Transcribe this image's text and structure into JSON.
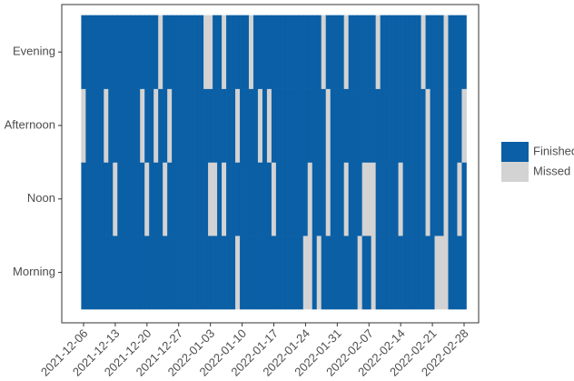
{
  "chart_data": {
    "type": "tile",
    "categories": [
      "2021-12-06",
      null,
      null,
      null,
      null,
      null,
      null,
      "2021-12-13",
      null,
      null,
      null,
      null,
      null,
      null,
      "2021-12-20",
      null,
      null,
      null,
      null,
      null,
      null,
      "2021-12-27",
      null,
      null,
      null,
      null,
      null,
      null,
      "2022-01-03",
      null,
      null,
      null,
      null,
      null,
      null,
      "2022-01-10",
      null,
      null,
      null,
      null,
      null,
      null,
      "2022-01-17",
      null,
      null,
      null,
      null,
      null,
      null,
      "2022-01-24",
      null,
      null,
      null,
      null,
      null,
      null,
      "2022-01-31",
      null,
      null,
      null,
      null,
      null,
      null,
      "2022-02-07",
      null,
      null,
      null,
      null,
      null,
      null,
      "2022-02-14",
      null,
      null,
      null,
      null,
      null,
      null,
      "2022-02-21",
      null,
      null,
      null,
      null,
      null,
      null,
      "2022-02-28"
    ],
    "series": [
      {
        "name": "Morning",
        "values": [
          1,
          1,
          1,
          1,
          1,
          1,
          1,
          1,
          1,
          1,
          1,
          1,
          1,
          1,
          1,
          1,
          1,
          1,
          1,
          1,
          1,
          1,
          1,
          1,
          1,
          1,
          1,
          1,
          1,
          1,
          1,
          1,
          1,
          1,
          0,
          1,
          1,
          1,
          1,
          1,
          1,
          1,
          1,
          1,
          1,
          1,
          1,
          1,
          1,
          0,
          0,
          1,
          0,
          1,
          1,
          1,
          1,
          1,
          1,
          1,
          1,
          0,
          1,
          1,
          0,
          1,
          1,
          1,
          1,
          1,
          1,
          1,
          1,
          1,
          1,
          1,
          1,
          1,
          0,
          0,
          0,
          1,
          1,
          1,
          1
        ]
      },
      {
        "name": "Noon",
        "values": [
          1,
          1,
          1,
          1,
          1,
          1,
          1,
          0,
          1,
          1,
          1,
          1,
          1,
          1,
          0,
          1,
          1,
          1,
          0,
          1,
          1,
          1,
          1,
          1,
          1,
          1,
          1,
          1,
          0,
          0,
          1,
          0,
          1,
          1,
          1,
          1,
          1,
          1,
          1,
          1,
          1,
          1,
          0,
          1,
          1,
          1,
          1,
          1,
          1,
          1,
          0,
          1,
          1,
          1,
          0,
          1,
          1,
          1,
          0,
          1,
          1,
          1,
          0,
          0,
          0,
          1,
          1,
          1,
          1,
          1,
          0,
          1,
          1,
          1,
          1,
          1,
          0,
          1,
          1,
          1,
          0,
          1,
          1,
          0,
          1
        ]
      },
      {
        "name": "Afternoon",
        "values": [
          0,
          1,
          1,
          1,
          1,
          0,
          1,
          1,
          1,
          1,
          1,
          1,
          1,
          0,
          1,
          1,
          0,
          1,
          1,
          0,
          1,
          1,
          1,
          1,
          1,
          1,
          1,
          1,
          1,
          1,
          1,
          1,
          1,
          1,
          0,
          1,
          1,
          1,
          1,
          0,
          1,
          0,
          1,
          1,
          1,
          1,
          1,
          1,
          1,
          1,
          1,
          1,
          1,
          1,
          0,
          1,
          1,
          1,
          1,
          1,
          1,
          1,
          1,
          1,
          1,
          1,
          1,
          1,
          1,
          1,
          1,
          1,
          1,
          1,
          1,
          1,
          0,
          1,
          1,
          1,
          0,
          1,
          1,
          1,
          0
        ]
      },
      {
        "name": "Evening",
        "values": [
          1,
          1,
          1,
          1,
          1,
          1,
          1,
          1,
          1,
          1,
          1,
          1,
          1,
          1,
          1,
          1,
          1,
          0,
          1,
          1,
          1,
          1,
          1,
          1,
          1,
          1,
          1,
          0,
          0,
          1,
          1,
          0,
          1,
          1,
          1,
          1,
          1,
          0,
          1,
          1,
          1,
          1,
          1,
          1,
          1,
          1,
          1,
          1,
          1,
          1,
          1,
          1,
          1,
          0,
          1,
          1,
          1,
          1,
          0,
          1,
          1,
          1,
          1,
          1,
          1,
          0,
          1,
          1,
          1,
          1,
          1,
          1,
          1,
          1,
          1,
          0,
          1,
          1,
          1,
          1,
          0,
          1,
          1,
          1,
          1
        ]
      }
    ],
    "legend": [
      {
        "label": "Finished",
        "value": 1,
        "color": "#0b5fa5"
      },
      {
        "label": "Missed",
        "value": 0,
        "color": "#d3d3d3"
      }
    ]
  }
}
